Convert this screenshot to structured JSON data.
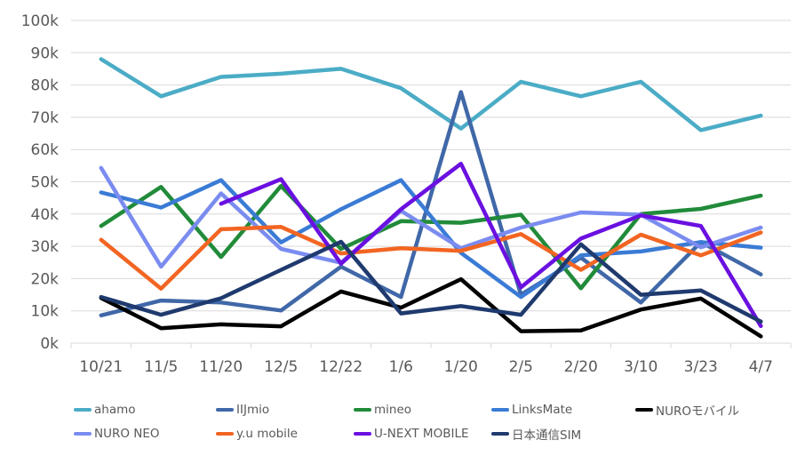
{
  "chart_data": {
    "type": "line",
    "title": "",
    "xlabel": "",
    "ylabel": "",
    "ylim": [
      0,
      100000
    ],
    "y_ticks": [
      0,
      10000,
      20000,
      30000,
      40000,
      50000,
      60000,
      70000,
      80000,
      90000,
      100000
    ],
    "y_tick_labels": [
      "0k",
      "10k",
      "20k",
      "30k",
      "40k",
      "50k",
      "60k",
      "70k",
      "80k",
      "90k",
      "100k"
    ],
    "grid": true,
    "legend_position": "bottom",
    "categories": [
      "10/21",
      "11/5",
      "11/20",
      "12/5",
      "12/22",
      "1/6",
      "1/20",
      "2/5",
      "2/20",
      "3/10",
      "3/23",
      "4/7"
    ],
    "series": [
      {
        "name": "ahamo",
        "color": "#4BACC6",
        "values": [
          88000,
          76500,
          82500,
          83500,
          85000,
          79000,
          66500,
          81000,
          76500,
          81000,
          66000,
          70500
        ]
      },
      {
        "name": "IIJmio",
        "color": "#4068A8",
        "values": [
          8600,
          13200,
          12600,
          10100,
          23700,
          14300,
          77800,
          15000,
          26500,
          12600,
          31300,
          21300
        ]
      },
      {
        "name": "mineo",
        "color": "#218B3A",
        "values": [
          36300,
          48400,
          26700,
          48700,
          29200,
          37800,
          37300,
          39800,
          17000,
          40000,
          41600,
          45700
        ]
      },
      {
        "name": "LinksMate",
        "color": "#3A7BD5",
        "values": [
          46700,
          42000,
          50500,
          31200,
          41500,
          50500,
          28000,
          14300,
          27200,
          28400,
          31300,
          29600
        ]
      },
      {
        "name": "NUROモバイル",
        "color": "#000000",
        "values": [
          14000,
          4600,
          5800,
          5200,
          16000,
          11000,
          19800,
          3700,
          3900,
          10400,
          13800,
          2100
        ]
      },
      {
        "name": "NURO NEO",
        "color": "#7B8CF0",
        "values": [
          54300,
          23700,
          46400,
          29200,
          24900,
          41000,
          29400,
          35800,
          40500,
          39800,
          29700,
          35800
        ]
      },
      {
        "name": "y.u mobile",
        "color": "#F26522",
        "values": [
          32000,
          16900,
          35300,
          36000,
          27800,
          29400,
          28600,
          33800,
          22700,
          33600,
          27200,
          34300
        ]
      },
      {
        "name": "U-NEXT MOBILE",
        "color": "#6A10E0",
        "values": [
          null,
          null,
          43200,
          50800,
          24600,
          41500,
          55600,
          17300,
          32400,
          39600,
          36300,
          5300
        ]
      },
      {
        "name": "日本通信SIM",
        "color": "#1F3A6E",
        "values": [
          14300,
          8800,
          13900,
          22700,
          31400,
          9200,
          11500,
          8800,
          30600,
          15000,
          16300,
          6700
        ]
      }
    ]
  }
}
